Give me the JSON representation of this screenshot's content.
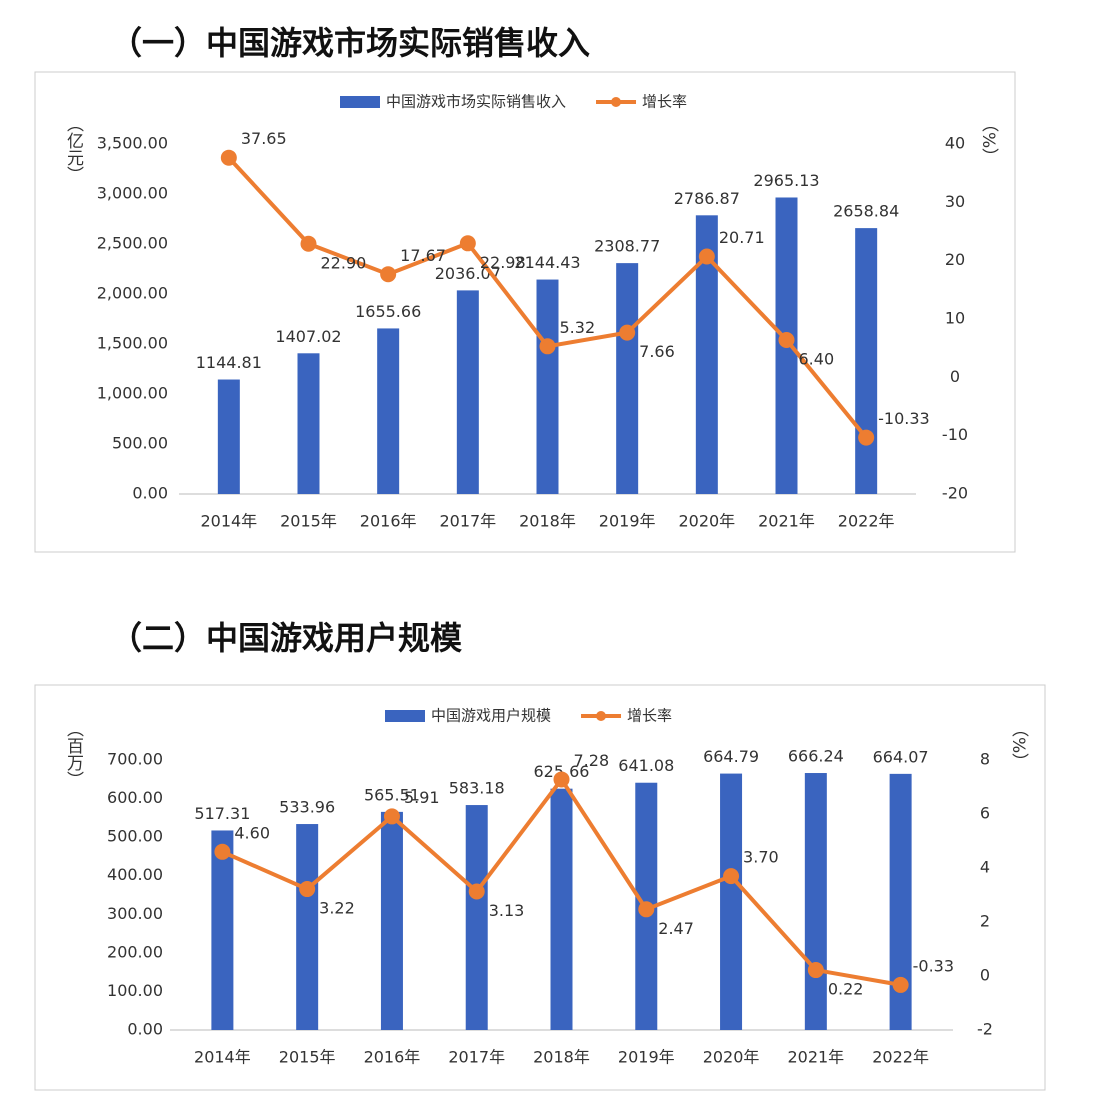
{
  "chart_data": [
    {
      "type": "combo",
      "title": "（一）中国游戏市场实际销售收入",
      "y_label": "（亿元）",
      "y2_label": "（%）",
      "categories": [
        "2014年",
        "2015年",
        "2016年",
        "2017年",
        "2018年",
        "2019年",
        "2020年",
        "2021年",
        "2022年"
      ],
      "series": [
        {
          "name": "中国游戏市场实际销售收入",
          "type": "bar",
          "color": "#3a64bf",
          "values": [
            1144.81,
            1407.02,
            1655.66,
            2036.07,
            2144.43,
            2308.77,
            2786.87,
            2965.13,
            2658.84
          ],
          "value_labels": [
            "1144.81",
            "1407.02",
            "1655.66",
            "2036.07",
            "2144.43",
            "2308.77",
            "2786.87",
            "2965.13",
            "2658.84"
          ]
        },
        {
          "name": "增长率",
          "type": "line",
          "axis": "y2",
          "color": "#ed7d31",
          "values": [
            37.65,
            22.9,
            17.67,
            22.98,
            5.32,
            7.66,
            20.71,
            6.4,
            -10.33
          ],
          "value_labels": [
            "37.65",
            "22.90",
            "17.67",
            "22.98",
            "5.32",
            "7.66",
            "20.71",
            "6.40",
            "-10.33"
          ]
        }
      ],
      "ylim": [
        0,
        3500
      ],
      "yticks": [
        {
          "value": 0,
          "label": "0.00"
        },
        {
          "value": 500,
          "label": "500.00"
        },
        {
          "value": 1000,
          "label": "1,000.00"
        },
        {
          "value": 1500,
          "label": "1,500.00"
        },
        {
          "value": 2000,
          "label": "2,000.00"
        },
        {
          "value": 2500,
          "label": "2,500.00"
        },
        {
          "value": 3000,
          "label": "3,000.00"
        },
        {
          "value": 3500,
          "label": "3,500.00"
        }
      ],
      "y2lim": [
        -20,
        40
      ],
      "y2ticks": [
        -20,
        -10,
        0,
        10,
        20,
        30,
        40
      ],
      "legend": "top"
    },
    {
      "type": "combo",
      "title": "（二）中国游戏用户规模",
      "y_label": "（百万）",
      "y2_label": "（%）",
      "categories": [
        "2014年",
        "2015年",
        "2016年",
        "2017年",
        "2018年",
        "2019年",
        "2020年",
        "2021年",
        "2022年"
      ],
      "series": [
        {
          "name": "中国游戏用户规模",
          "type": "bar",
          "color": "#3a64bf",
          "values": [
            517.31,
            533.96,
            565.51,
            583.18,
            625.66,
            641.08,
            664.79,
            666.24,
            664.07
          ],
          "value_labels": [
            "517.31",
            "533.96",
            "565.51",
            "583.18",
            "625.66",
            "641.08",
            "664.79",
            "666.24",
            "664.07"
          ]
        },
        {
          "name": "增长率",
          "type": "line",
          "axis": "y2",
          "color": "#ed7d31",
          "values": [
            4.6,
            3.22,
            5.91,
            3.13,
            7.28,
            2.47,
            3.7,
            0.22,
            -0.33
          ],
          "value_labels": [
            "4.60",
            "3.22",
            "5.91",
            "3.13",
            "7.28",
            "2.47",
            "3.70",
            "0.22",
            "-0.33"
          ]
        }
      ],
      "ylim": [
        0,
        700
      ],
      "yticks": [
        {
          "value": 0,
          "label": "0.00"
        },
        {
          "value": 100,
          "label": "100.00"
        },
        {
          "value": 200,
          "label": "200.00"
        },
        {
          "value": 300,
          "label": "300.00"
        },
        {
          "value": 400,
          "label": "400.00"
        },
        {
          "value": 500,
          "label": "500.00"
        },
        {
          "value": 600,
          "label": "600.00"
        },
        {
          "value": 700,
          "label": "700.00"
        }
      ],
      "y2lim": [
        -2,
        8
      ],
      "y2ticks": [
        -2,
        0,
        2,
        4,
        6,
        8
      ],
      "legend": "top"
    }
  ]
}
